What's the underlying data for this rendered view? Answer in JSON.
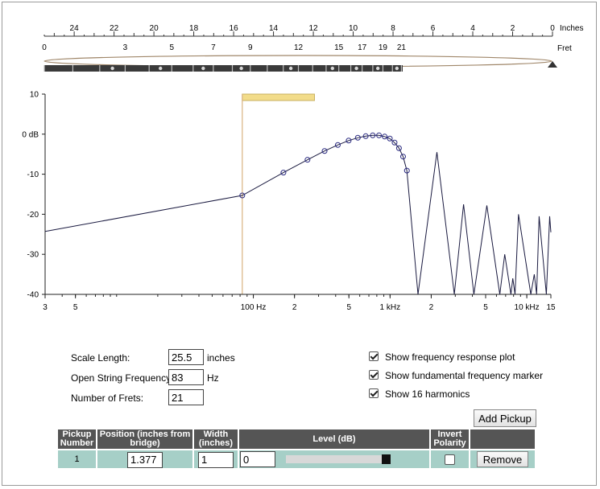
{
  "ruler": {
    "inches_label": "Inches",
    "fret_label": "Fret",
    "inch_ticks": [
      "24",
      "22",
      "20",
      "18",
      "16",
      "14",
      "12",
      "10",
      "8",
      "6",
      "4",
      "2",
      "0"
    ],
    "fret_ticks": [
      "0",
      "3",
      "5",
      "7",
      "9",
      "12",
      "15",
      "17",
      "19",
      "21"
    ]
  },
  "chart_data": {
    "type": "line",
    "x_scale": "log",
    "xlim": [
      3,
      15000
    ],
    "ylim": [
      -40,
      10
    ],
    "x_ticks": [
      {
        "v": 3,
        "label": "3"
      },
      {
        "v": 5,
        "label": "5"
      },
      {
        "v": 100,
        "label": "100 Hz"
      },
      {
        "v": 200,
        "label": "2"
      },
      {
        "v": 500,
        "label": "5"
      },
      {
        "v": 1000,
        "label": "1 kHz"
      },
      {
        "v": 2000,
        "label": "2"
      },
      {
        "v": 5000,
        "label": "5"
      },
      {
        "v": 10000,
        "label": "10 kHz"
      },
      {
        "v": 15000,
        "label": "15"
      }
    ],
    "y_ticks": [
      {
        "v": 10,
        "label": "10"
      },
      {
        "v": 0,
        "label": "0 dB"
      },
      {
        "v": -10,
        "label": "-10"
      },
      {
        "v": -20,
        "label": "-20"
      },
      {
        "v": -30,
        "label": "-30"
      },
      {
        "v": -40,
        "label": "-40"
      }
    ],
    "fundamental_marker_hz": 83,
    "series": [
      {
        "points": [
          [
            3,
            -24.3
          ],
          [
            83,
            -15.3
          ],
          [
            166,
            -9.6
          ],
          [
            249,
            -6.4
          ],
          [
            332,
            -4.2
          ],
          [
            415,
            -2.7
          ],
          [
            498,
            -1.6
          ],
          [
            581,
            -0.9
          ],
          [
            664,
            -0.5
          ],
          [
            747,
            -0.3
          ],
          [
            830,
            -0.3
          ],
          [
            913,
            -0.6
          ],
          [
            996,
            -1.1
          ],
          [
            1079,
            -2.1
          ],
          [
            1162,
            -3.5
          ],
          [
            1245,
            -5.6
          ],
          [
            1328,
            -9.1
          ],
          [
            1600,
            -40
          ],
          [
            2200,
            -4.5
          ],
          [
            2950,
            -40
          ],
          [
            3450,
            -17.5
          ],
          [
            4100,
            -40
          ],
          [
            5100,
            -17.8
          ],
          [
            6350,
            -40
          ],
          [
            6900,
            -30
          ],
          [
            7650,
            -40
          ],
          [
            7900,
            -36
          ],
          [
            8200,
            -40
          ],
          [
            8700,
            -20
          ],
          [
            10700,
            -40
          ],
          [
            11350,
            -35
          ],
          [
            11800,
            -40
          ],
          [
            12300,
            -20.5
          ],
          [
            13900,
            -40
          ],
          [
            14700,
            -20.5
          ],
          [
            15000,
            -24.5
          ]
        ],
        "harmonics": [
          [
            83,
            -15.3
          ],
          [
            166,
            -9.6
          ],
          [
            249,
            -6.4
          ],
          [
            332,
            -4.2
          ],
          [
            415,
            -2.7
          ],
          [
            498,
            -1.6
          ],
          [
            581,
            -0.9
          ],
          [
            664,
            -0.5
          ],
          [
            747,
            -0.3
          ],
          [
            830,
            -0.3
          ],
          [
            913,
            -0.6
          ],
          [
            996,
            -1.1
          ],
          [
            1079,
            -2.1
          ],
          [
            1162,
            -3.5
          ],
          [
            1245,
            -5.6
          ],
          [
            1328,
            -9.1
          ]
        ]
      }
    ]
  },
  "settings": {
    "scale_length_label": "Scale Length:",
    "scale_length_value": "25.5",
    "scale_length_unit": "inches",
    "open_freq_label": "Open String Frequency:",
    "open_freq_value": "83",
    "open_freq_unit": "Hz",
    "frets_label": "Number of Frets:",
    "frets_value": "21"
  },
  "options": {
    "show_response_label": "Show frequency response plot",
    "show_fundamental_label": "Show fundamental frequency marker",
    "show_harmonics_label": "Show 16 harmonics"
  },
  "pickups": {
    "add_label": "Add Pickup",
    "headers": {
      "number": "Pickup Number",
      "position": "Position (inches from bridge)",
      "width": "Width (inches)",
      "level": "Level (dB)",
      "invert": "Invert Polarity"
    },
    "row": {
      "number": "1",
      "position": "1.377",
      "width": "1",
      "level": "0",
      "level_slider": 1.0,
      "invert": false,
      "remove_label": "Remove"
    }
  },
  "colors": {
    "curve": "#1a1a40",
    "harmonic_marker": "#2a2a80",
    "fundamental_marker": "#dcb98a",
    "pickup_bar": "#f2dc8a",
    "pickup_handle": "#a8d0c8",
    "table_header": "#555555",
    "table_row": "#a6cfc7"
  }
}
